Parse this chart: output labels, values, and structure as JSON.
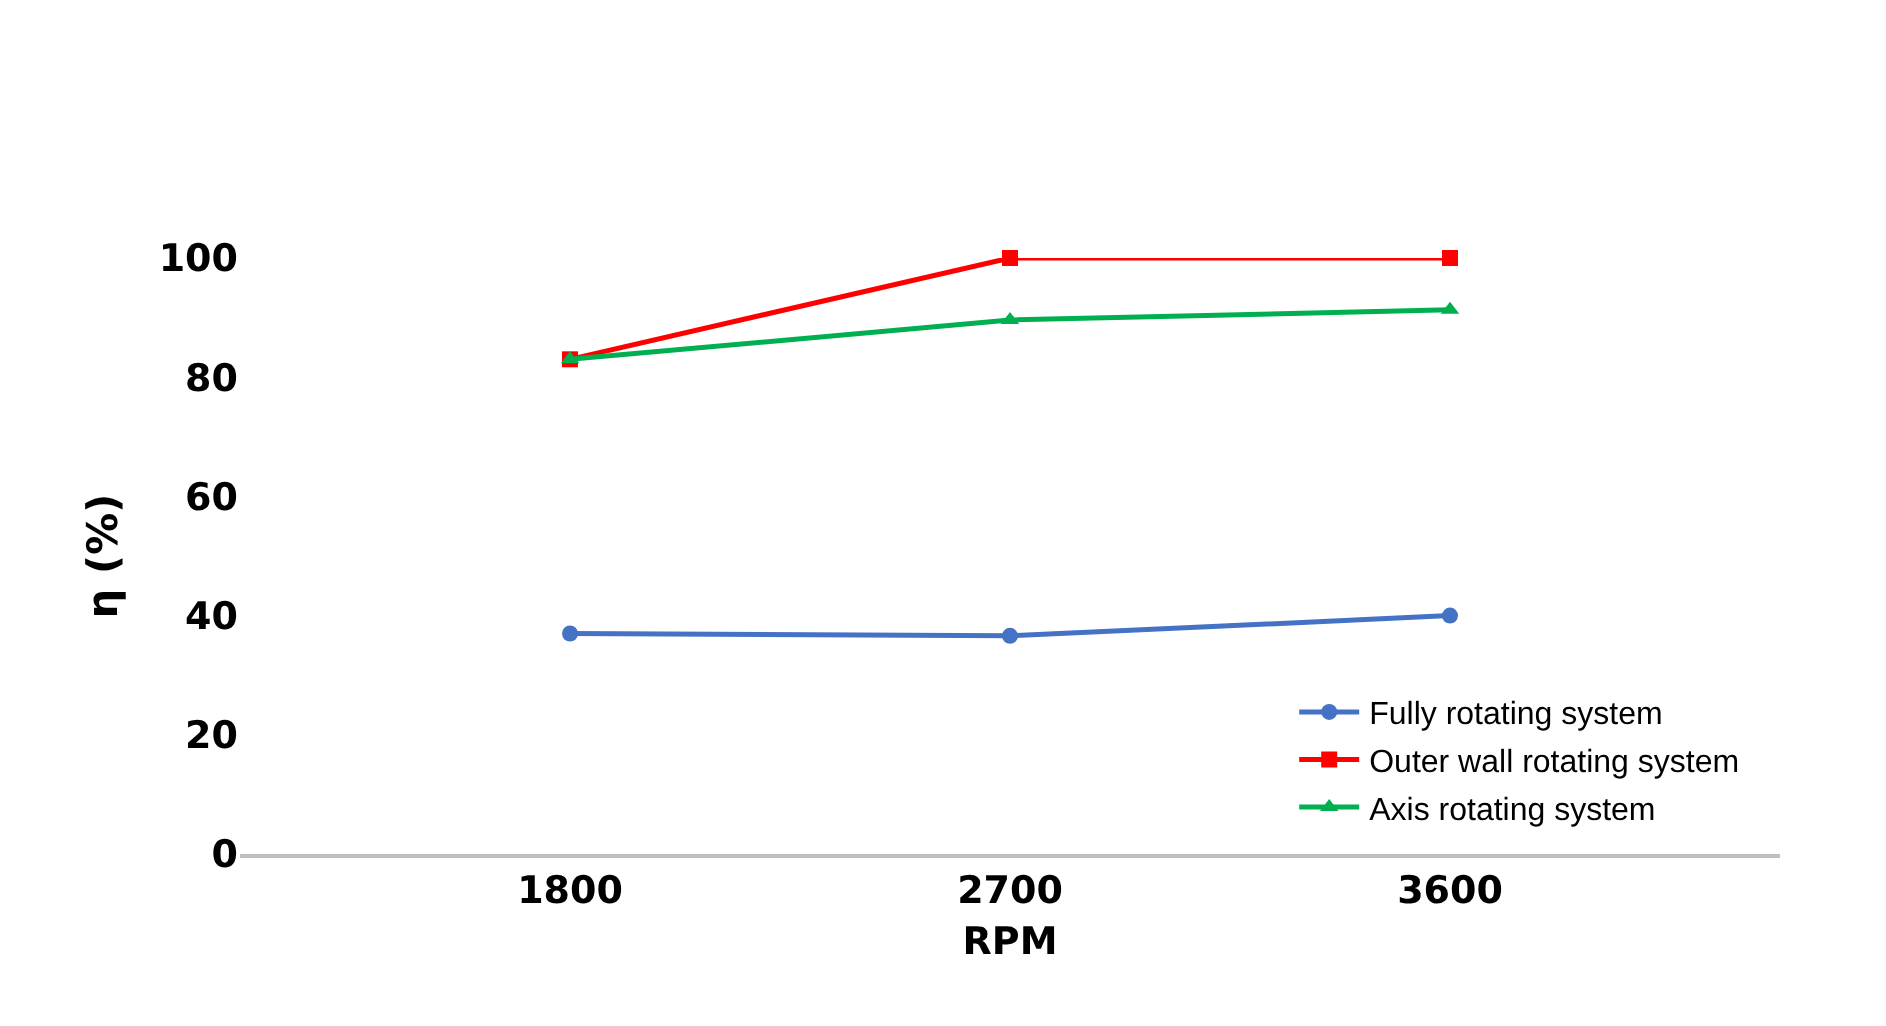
{
  "chart_data": {
    "type": "line",
    "xlabel": "RPM",
    "ylabel": "η (%)",
    "categories": [
      "1800",
      "2700",
      "3600"
    ],
    "series": [
      {
        "name": "Fully rotating system",
        "color": "#4472c4",
        "marker": "circle",
        "values": [
          37,
          36.6,
          40
        ]
      },
      {
        "name": "Outer wall rotating system",
        "color": "#ff0000",
        "marker": "square",
        "values": [
          83,
          100,
          100
        ]
      },
      {
        "name": "Axis rotating system",
        "color": "#00b050",
        "marker": "triangle",
        "values": [
          83,
          89.6,
          91.3
        ]
      }
    ],
    "ylim": [
      0,
      100
    ],
    "yticks": [
      0,
      20,
      40,
      60,
      80,
      100
    ],
    "grid": false,
    "legend": "bottom right"
  }
}
